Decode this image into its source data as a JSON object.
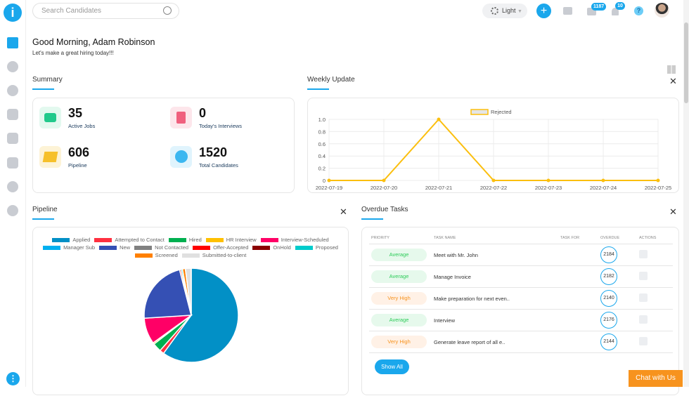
{
  "app": {
    "logo_letter": "i"
  },
  "topbar": {
    "search_placeholder": "Search Candidates",
    "theme_label": "Light",
    "mail_badge": "1187",
    "bell_badge": "10",
    "help": "?"
  },
  "greeting": {
    "title": "Good Morning,  Adam Robinson",
    "subtitle": "Let's make a great hiring today!!!"
  },
  "summary": {
    "title": "Summary",
    "stats": [
      {
        "value": "35",
        "label": "Active Jobs",
        "color": "#21c98b"
      },
      {
        "value": "0",
        "label": "Today's Interviews",
        "color": "#f0607e"
      },
      {
        "value": "606",
        "label": "Pipeline",
        "color": "#f6c02b"
      },
      {
        "value": "1520",
        "label": "Total Candidates",
        "color": "#3bb7f0"
      }
    ]
  },
  "weekly": {
    "title": "Weekly Update"
  },
  "pipeline": {
    "title": "Pipeline"
  },
  "tasks": {
    "title": "Overdue Tasks",
    "headers": [
      "PRIORITY",
      "TASK NAME",
      "TASK FOR",
      "OVERDUE",
      "ACTIONS"
    ],
    "rows": [
      {
        "priority": "Average",
        "name": "Meet with Mr. John",
        "task_for": "",
        "overdue": "2184"
      },
      {
        "priority": "Average",
        "name": "Manage Invoice",
        "task_for": "",
        "overdue": "2182"
      },
      {
        "priority": "Very High",
        "name": "Make preparation for next even..",
        "task_for": "",
        "overdue": "2140"
      },
      {
        "priority": "Average",
        "name": "Interview",
        "task_for": "",
        "overdue": "2176"
      },
      {
        "priority": "Very High",
        "name": "Generate leave report of all e..",
        "task_for": "",
        "overdue": "2144"
      }
    ],
    "show_all": "Show All"
  },
  "chat": "Chat with Us",
  "colors": {
    "accent": "#1aa7ec",
    "average_bg": "#e6f9ec",
    "average_fg": "#2ecc5a",
    "high_bg": "#fff1e6",
    "high_fg": "#f7931e"
  },
  "chart_data": [
    {
      "type": "line",
      "title": "",
      "series": [
        {
          "name": "Rejected",
          "color": "#fbbf0f",
          "values": [
            0,
            0,
            1,
            0,
            0,
            0,
            0
          ]
        }
      ],
      "x": [
        "2022-07-19",
        "2022-07-20",
        "2022-07-21",
        "2022-07-22",
        "2022-07-23",
        "2022-07-24",
        "2022-07-25"
      ],
      "yticks": [
        "0",
        "0.2",
        "0.4",
        "0.6",
        "0.8",
        "1.0"
      ],
      "ylim": [
        0,
        1
      ],
      "grid": true,
      "legend": "top"
    },
    {
      "type": "pie",
      "legend": "top",
      "categories": [
        "Applied",
        "Attempted to Contact",
        "Hired",
        "HR Interview",
        "Interview-Scheduled",
        "Manager Sub",
        "New",
        "Not Contacted",
        "Offer-Accepted",
        "OnHold",
        "Proposed",
        "Screened",
        "Submitted-to-client"
      ],
      "colors": [
        "#0290c6",
        "#ff3040",
        "#00b050",
        "#ffc000",
        "#ff0066",
        "#00b0f0",
        "#3550b4",
        "#808080",
        "#ff0000",
        "#8b0000",
        "#00cccc",
        "#ff8000",
        "#e0e0e0"
      ],
      "values": [
        60,
        1.5,
        3,
        0.5,
        9,
        0,
        22,
        0,
        0.5,
        0,
        0.5,
        1,
        2
      ]
    }
  ]
}
